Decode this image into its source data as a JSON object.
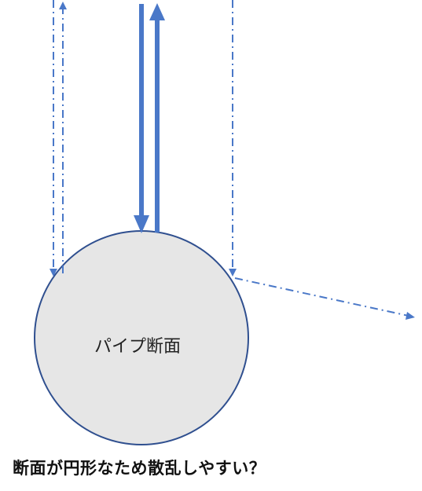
{
  "diagram": {
    "pipe_label": "パイプ断面",
    "caption": "断面が円形なため散乱しやすい？",
    "colors": {
      "arrow": "#4a78c8",
      "circle_fill": "#e6e6e6",
      "circle_stroke": "#2f4f8f"
    },
    "rays": [
      {
        "name": "direct-incident-ray",
        "style": "solid",
        "direction": "down"
      },
      {
        "name": "direct-reflected-ray",
        "style": "solid",
        "direction": "up"
      },
      {
        "name": "left-edge-incident-ray",
        "style": "dash-dot",
        "direction": "down"
      },
      {
        "name": "left-edge-reflected-ray",
        "style": "dash-dot",
        "direction": "up"
      },
      {
        "name": "right-edge-incident-ray",
        "style": "dash-dot",
        "direction": "down"
      },
      {
        "name": "right-edge-scattered-ray",
        "style": "dash-dot",
        "direction": "right-down"
      }
    ]
  }
}
